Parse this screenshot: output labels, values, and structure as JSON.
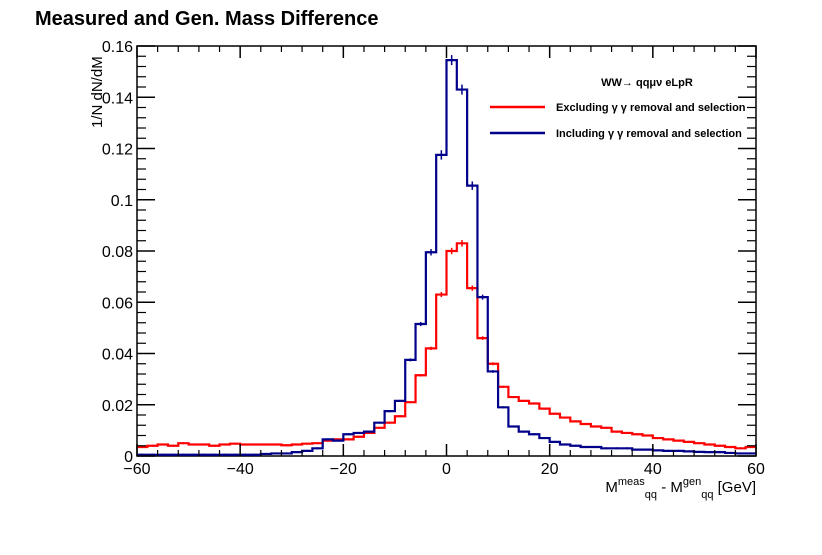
{
  "chart_data": {
    "type": "line",
    "style": "step-histogram",
    "title": "Measured and Gen. Mass Difference",
    "xlabel": {
      "main": "M",
      "sup1": "meas",
      "sub1": "qq",
      "mid": " - M",
      "sup2": "gen",
      "sub2": "qq",
      "unit": " [GeV]"
    },
    "ylabel": "1/N dN/dM",
    "xlim": [
      -60,
      60
    ],
    "ylim": [
      0,
      0.16
    ],
    "x_ticks": [
      -60,
      -40,
      -20,
      0,
      20,
      40,
      60
    ],
    "x_tick_labels": [
      "−60",
      "−40",
      "−20",
      "0",
      "20",
      "40",
      "60"
    ],
    "y_ticks": [
      0,
      0.02,
      0.04,
      0.06,
      0.08,
      0.1,
      0.12,
      0.14,
      0.16
    ],
    "y_tick_labels": [
      "0",
      "0.02",
      "0.04",
      "0.06",
      "0.08",
      "0.1",
      "0.12",
      "0.14",
      "0.16"
    ],
    "bin_width": 2,
    "bin_low_edges": [
      -60,
      -58,
      -56,
      -54,
      -52,
      -50,
      -48,
      -46,
      -44,
      -42,
      -40,
      -38,
      -36,
      -34,
      -32,
      -30,
      -28,
      -26,
      -24,
      -22,
      -20,
      -18,
      -16,
      -14,
      -12,
      -10,
      -8,
      -6,
      -4,
      -2,
      0,
      2,
      4,
      6,
      8,
      10,
      12,
      14,
      16,
      18,
      20,
      22,
      24,
      26,
      28,
      30,
      32,
      34,
      36,
      38,
      40,
      42,
      44,
      46,
      48,
      50,
      52,
      54,
      56,
      58
    ],
    "legend_header": "WW→ qqμν  eLpR",
    "series": [
      {
        "name": "Excluding γ γ removal and selection",
        "color": "#ff0000",
        "values": [
          0.0035,
          0.004,
          0.0045,
          0.004,
          0.005,
          0.0045,
          0.0045,
          0.004,
          0.0045,
          0.0048,
          0.0045,
          0.0045,
          0.0045,
          0.0045,
          0.0042,
          0.0045,
          0.0048,
          0.005,
          0.006,
          0.0065,
          0.0065,
          0.0075,
          0.009,
          0.011,
          0.013,
          0.0155,
          0.021,
          0.0315,
          0.042,
          0.063,
          0.08,
          0.083,
          0.0655,
          0.046,
          0.036,
          0.027,
          0.023,
          0.0215,
          0.0205,
          0.0185,
          0.0165,
          0.015,
          0.0135,
          0.0125,
          0.0115,
          0.011,
          0.0095,
          0.009,
          0.0085,
          0.008,
          0.007,
          0.0065,
          0.006,
          0.0055,
          0.005,
          0.0045,
          0.004,
          0.0035,
          0.003,
          0.0035
        ]
      },
      {
        "name": "Including γ γ removal and selection",
        "color": "#00008b",
        "values": [
          0.0005,
          0.0005,
          0.0005,
          0.0005,
          0.0005,
          0.0005,
          0.0005,
          0.0005,
          0.0005,
          0.0005,
          0.0005,
          0.0005,
          0.0008,
          0.001,
          0.001,
          0.0015,
          0.002,
          0.003,
          0.0065,
          0.006,
          0.0085,
          0.009,
          0.0095,
          0.013,
          0.0175,
          0.0215,
          0.0375,
          0.0515,
          0.0795,
          0.1175,
          0.1545,
          0.143,
          0.1055,
          0.062,
          0.033,
          0.019,
          0.0115,
          0.0095,
          0.0085,
          0.007,
          0.0055,
          0.0045,
          0.004,
          0.0035,
          0.0035,
          0.003,
          0.003,
          0.003,
          0.0025,
          0.0025,
          0.0022,
          0.002,
          0.002,
          0.0018,
          0.0016,
          0.0015,
          0.0015,
          0.0012,
          0.001,
          0.001
        ]
      }
    ]
  }
}
